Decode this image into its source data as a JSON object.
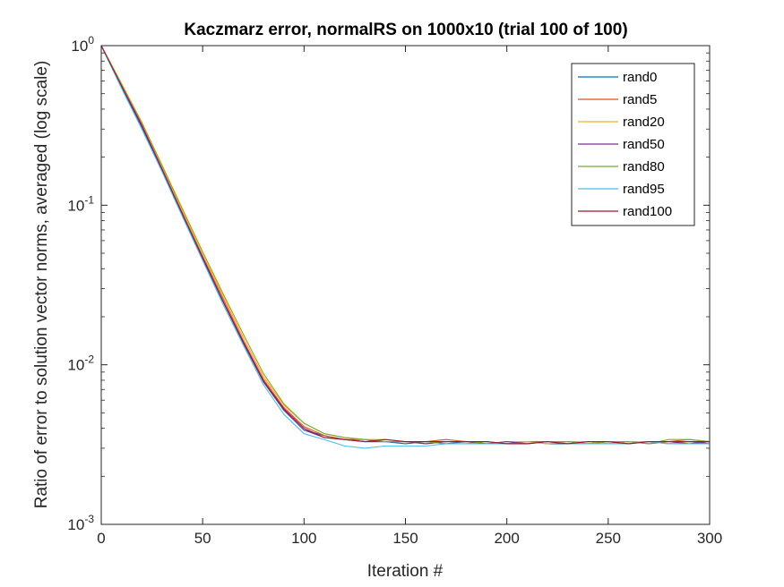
{
  "chart_data": {
    "type": "line",
    "title": "Kaczmarz error, normalRS on 1000x10 (trial 100 of 100)",
    "xlabel": "Iteration #",
    "ylabel": "Ratio of error to solution vector norms, averaged (log scale)",
    "xlim": [
      0,
      300
    ],
    "ylim": [
      0.001,
      1
    ],
    "yscale": "log",
    "grid": false,
    "legend_position": "top-right",
    "x_ticks": [
      "0",
      "50",
      "100",
      "150",
      "200",
      "250",
      "300"
    ],
    "y_ticks": [
      {
        "base": "10",
        "exp": "-3"
      },
      {
        "base": "10",
        "exp": "-2"
      },
      {
        "base": "10",
        "exp": "-1"
      },
      {
        "base": "10",
        "exp": "0"
      }
    ],
    "x": [
      0,
      10,
      20,
      30,
      40,
      50,
      60,
      70,
      80,
      90,
      100,
      110,
      120,
      130,
      140,
      150,
      160,
      170,
      180,
      190,
      200,
      210,
      220,
      230,
      240,
      250,
      260,
      270,
      280,
      290,
      300
    ],
    "series": [
      {
        "name": "rand0",
        "color": "#0072BD",
        "values": [
          1.0,
          0.55,
          0.31,
          0.165,
          0.087,
          0.047,
          0.025,
          0.0138,
          0.0079,
          0.0052,
          0.0039,
          0.0036,
          0.0034,
          0.0033,
          0.0033,
          0.0032,
          0.0033,
          0.0032,
          0.0033,
          0.0032,
          0.0032,
          0.0033,
          0.0032,
          0.0032,
          0.0033,
          0.0032,
          0.0033,
          0.0033,
          0.0032,
          0.0033,
          0.0032
        ]
      },
      {
        "name": "rand5",
        "color": "#D95319",
        "values": [
          1.0,
          0.57,
          0.32,
          0.17,
          0.09,
          0.048,
          0.026,
          0.0142,
          0.0081,
          0.0054,
          0.0041,
          0.0036,
          0.0034,
          0.0034,
          0.0033,
          0.0033,
          0.0033,
          0.0034,
          0.0033,
          0.0033,
          0.0032,
          0.0033,
          0.0033,
          0.0032,
          0.0033,
          0.0033,
          0.0033,
          0.0032,
          0.0033,
          0.0034,
          0.0033
        ]
      },
      {
        "name": "rand20",
        "color": "#EDB120",
        "values": [
          1.0,
          0.58,
          0.33,
          0.175,
          0.092,
          0.049,
          0.027,
          0.0148,
          0.0084,
          0.0056,
          0.0043,
          0.0037,
          0.0035,
          0.0034,
          0.0034,
          0.0033,
          0.0032,
          0.0033,
          0.0033,
          0.0032,
          0.0033,
          0.0033,
          0.0032,
          0.0033,
          0.0033,
          0.0032,
          0.0033,
          0.0033,
          0.0032,
          0.0033,
          0.0033
        ]
      },
      {
        "name": "rand50",
        "color": "#7E2F8E",
        "values": [
          1.0,
          0.55,
          0.31,
          0.163,
          0.086,
          0.046,
          0.025,
          0.0137,
          0.0078,
          0.0052,
          0.0039,
          0.0035,
          0.0034,
          0.0033,
          0.0033,
          0.0033,
          0.0032,
          0.0033,
          0.0033,
          0.0032,
          0.0033,
          0.0032,
          0.0033,
          0.0033,
          0.0032,
          0.0033,
          0.0032,
          0.0033,
          0.0033,
          0.0032,
          0.0033
        ]
      },
      {
        "name": "rand80",
        "color": "#77AC30",
        "values": [
          1.0,
          0.57,
          0.33,
          0.178,
          0.095,
          0.051,
          0.028,
          0.0156,
          0.0088,
          0.0057,
          0.0043,
          0.0037,
          0.0035,
          0.0034,
          0.0033,
          0.0033,
          0.0033,
          0.0032,
          0.0032,
          0.0033,
          0.0032,
          0.0032,
          0.0033,
          0.0033,
          0.0032,
          0.0033,
          0.0033,
          0.0032,
          0.0034,
          0.0034,
          0.0033
        ]
      },
      {
        "name": "rand95",
        "color": "#4DBEEE",
        "values": [
          1.0,
          0.54,
          0.3,
          0.162,
          0.085,
          0.045,
          0.024,
          0.0133,
          0.0075,
          0.0049,
          0.0037,
          0.0034,
          0.0031,
          0.003,
          0.0031,
          0.0031,
          0.0031,
          0.0032,
          0.0032,
          0.0032,
          0.0032,
          0.0032,
          0.0033,
          0.0032,
          0.0032,
          0.0032,
          0.0032,
          0.0033,
          0.0032,
          0.0032,
          0.0032
        ]
      },
      {
        "name": "rand100",
        "color": "#A2142F",
        "values": [
          1.0,
          0.56,
          0.315,
          0.168,
          0.088,
          0.047,
          0.025,
          0.0139,
          0.0079,
          0.0053,
          0.004,
          0.0035,
          0.0034,
          0.0033,
          0.0034,
          0.0033,
          0.0033,
          0.0033,
          0.0033,
          0.0033,
          0.0032,
          0.0032,
          0.0033,
          0.0032,
          0.0033,
          0.0033,
          0.0032,
          0.0033,
          0.0033,
          0.0033,
          0.0033
        ]
      }
    ]
  }
}
